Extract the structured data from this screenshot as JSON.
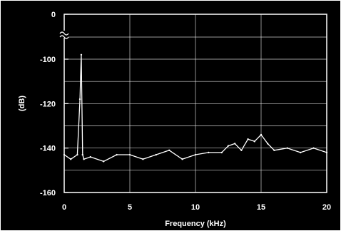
{
  "chart_data": {
    "type": "line",
    "title": "",
    "xlabel": "Frequency (kHz)",
    "ylabel": "(dB)",
    "xlim": [
      0,
      20
    ],
    "ylim": [
      -160,
      0
    ],
    "x_ticks": [
      0,
      5,
      10,
      15,
      20
    ],
    "y_ticks": [
      0,
      -100,
      -120,
      -140,
      -160
    ],
    "y_axis_break": "between 0 and -100",
    "grid": true,
    "background": "#000000",
    "line_color": "#ffffff",
    "series": [
      {
        "x": [
          0,
          0.5,
          1.0,
          1.2,
          1.3,
          1.4,
          1.5,
          2,
          3,
          4,
          5,
          6,
          7,
          8,
          9,
          10,
          11,
          12,
          12.5,
          13,
          13.5,
          14,
          14.5,
          15,
          15.5,
          16,
          17,
          18,
          19,
          20
        ],
        "values": [
          -143,
          -145,
          -143,
          -118,
          -98,
          -143,
          -145,
          -144,
          -146,
          -143,
          -143,
          -145,
          -143,
          -141,
          -145,
          -143,
          -142,
          -142,
          -139,
          -138,
          -141,
          -136,
          -137,
          -134,
          -138,
          -141,
          -140,
          -142,
          -140,
          -142
        ]
      }
    ]
  }
}
